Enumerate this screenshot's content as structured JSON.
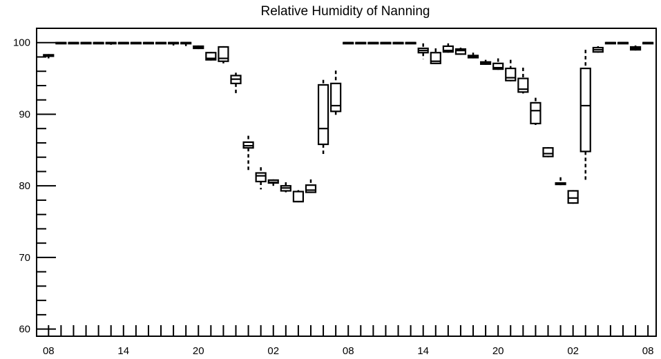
{
  "chart_data": {
    "type": "box",
    "title": "Relative Humidity of Nanning",
    "xlabel": "",
    "ylabel": "",
    "ylim": [
      59,
      102
    ],
    "y_ticks": [
      60,
      70,
      80,
      90,
      100
    ],
    "x_ticks": [
      "08",
      "14",
      "20",
      "02",
      "08",
      "14",
      "20",
      "02",
      "08"
    ],
    "x_tick_index": [
      0,
      6,
      12,
      18,
      24,
      30,
      36,
      42,
      48
    ],
    "n_slots": 49,
    "grid": false,
    "boxes": [
      {
        "i": 0,
        "min": 97.8,
        "q1": 98.1,
        "med": 98.2,
        "q3": 98.3,
        "max": 98.4
      },
      {
        "i": 1,
        "min": 100,
        "q1": 100,
        "med": 100,
        "q3": 100,
        "max": 100
      },
      {
        "i": 2,
        "min": 100,
        "q1": 100,
        "med": 100,
        "q3": 100,
        "max": 100
      },
      {
        "i": 3,
        "min": 100,
        "q1": 100,
        "med": 100,
        "q3": 100,
        "max": 100
      },
      {
        "i": 4,
        "min": 100,
        "q1": 100,
        "med": 100,
        "q3": 100,
        "max": 100
      },
      {
        "i": 5,
        "min": 99.7,
        "q1": 100,
        "med": 100,
        "q3": 100,
        "max": 100
      },
      {
        "i": 6,
        "min": 100,
        "q1": 100,
        "med": 100,
        "q3": 100,
        "max": 100
      },
      {
        "i": 7,
        "min": 100,
        "q1": 100,
        "med": 100,
        "q3": 100,
        "max": 100
      },
      {
        "i": 8,
        "min": 100,
        "q1": 100,
        "med": 100,
        "q3": 100,
        "max": 100
      },
      {
        "i": 9,
        "min": 100,
        "q1": 100,
        "med": 100,
        "q3": 100,
        "max": 100
      },
      {
        "i": 10,
        "min": 99.6,
        "q1": 100,
        "med": 100,
        "q3": 100,
        "max": 100
      },
      {
        "i": 11,
        "min": 99.4,
        "q1": 100,
        "med": 100,
        "q3": 100,
        "max": 100
      },
      {
        "i": 12,
        "min": 99.1,
        "q1": 99.2,
        "med": 99.3,
        "q3": 99.5,
        "max": 99.6
      },
      {
        "i": 13,
        "min": 97.5,
        "q1": 97.6,
        "med": 97.8,
        "q3": 98.6,
        "max": 98.7
      },
      {
        "i": 14,
        "min": 97.1,
        "q1": 97.4,
        "med": 97.8,
        "q3": 99.4,
        "max": 99.5
      },
      {
        "i": 15,
        "min": 92.6,
        "q1": 94.3,
        "med": 94.9,
        "q3": 95.4,
        "max": 95.8
      },
      {
        "i": 16,
        "min": 82.0,
        "q1": 85.3,
        "med": 85.6,
        "q3": 86.1,
        "max": 87.0
      },
      {
        "i": 17,
        "min": 79.5,
        "q1": 80.6,
        "med": 81.4,
        "q3": 81.8,
        "max": 82.6
      },
      {
        "i": 18,
        "min": 80.0,
        "q1": 80.4,
        "med": 80.5,
        "q3": 80.8,
        "max": 80.9
      },
      {
        "i": 19,
        "min": 79.1,
        "q1": 79.3,
        "med": 79.7,
        "q3": 80.0,
        "max": 80.5
      },
      {
        "i": 20,
        "min": 77.7,
        "q1": 77.8,
        "med": 77.8,
        "q3": 79.2,
        "max": 79.4
      },
      {
        "i": 21,
        "min": 79.0,
        "q1": 79.1,
        "med": 79.4,
        "q3": 80.1,
        "max": 80.9
      },
      {
        "i": 22,
        "min": 84.1,
        "q1": 85.8,
        "med": 88.0,
        "q3": 94.1,
        "max": 94.8
      },
      {
        "i": 23,
        "min": 89.9,
        "q1": 90.4,
        "med": 91.2,
        "q3": 94.3,
        "max": 96.1
      },
      {
        "i": 24,
        "min": 99.8,
        "q1": 99.9,
        "med": 100,
        "q3": 100,
        "max": 100
      },
      {
        "i": 25,
        "min": 100,
        "q1": 100,
        "med": 100,
        "q3": 100,
        "max": 100
      },
      {
        "i": 26,
        "min": 100,
        "q1": 100,
        "med": 100,
        "q3": 100,
        "max": 100
      },
      {
        "i": 27,
        "min": 100,
        "q1": 100,
        "med": 100,
        "q3": 100,
        "max": 100
      },
      {
        "i": 28,
        "min": 100,
        "q1": 100,
        "med": 100,
        "q3": 100,
        "max": 100
      },
      {
        "i": 29,
        "min": 100,
        "q1": 100,
        "med": 100,
        "q3": 100,
        "max": 100
      },
      {
        "i": 30,
        "min": 97.7,
        "q1": 98.6,
        "med": 98.9,
        "q3": 99.2,
        "max": 99.9
      },
      {
        "i": 31,
        "min": 97.0,
        "q1": 97.1,
        "med": 97.4,
        "q3": 98.6,
        "max": 99.2
      },
      {
        "i": 32,
        "min": 98.6,
        "q1": 98.7,
        "med": 98.9,
        "q3": 99.5,
        "max": 99.9
      },
      {
        "i": 33,
        "min": 98.3,
        "q1": 98.4,
        "med": 98.9,
        "q3": 99.1,
        "max": 99.3
      },
      {
        "i": 34,
        "min": 97.8,
        "q1": 97.9,
        "med": 98.1,
        "q3": 98.2,
        "max": 98.6
      },
      {
        "i": 35,
        "min": 96.9,
        "q1": 97.0,
        "med": 97.2,
        "q3": 97.3,
        "max": 97.6
      },
      {
        "i": 36,
        "min": 96.2,
        "q1": 96.3,
        "med": 96.5,
        "q3": 97.1,
        "max": 97.8
      },
      {
        "i": 37,
        "min": 94.6,
        "q1": 94.7,
        "med": 95.1,
        "q3": 96.4,
        "max": 97.6
      },
      {
        "i": 38,
        "min": 92.9,
        "q1": 93.1,
        "med": 93.5,
        "q3": 95.0,
        "max": 96.5
      },
      {
        "i": 39,
        "min": 88.5,
        "q1": 88.7,
        "med": 90.5,
        "q3": 91.6,
        "max": 92.3
      },
      {
        "i": 40,
        "min": 84.0,
        "q1": 84.1,
        "med": 84.5,
        "q3": 85.3,
        "max": 85.4
      },
      {
        "i": 41,
        "min": 80.1,
        "q1": 80.2,
        "med": 80.3,
        "q3": 80.4,
        "max": 81.2
      },
      {
        "i": 42,
        "min": 77.5,
        "q1": 77.6,
        "med": 78.3,
        "q3": 79.3,
        "max": 79.4
      },
      {
        "i": 43,
        "min": 80.6,
        "q1": 84.8,
        "med": 91.2,
        "q3": 96.4,
        "max": 99.0
      },
      {
        "i": 44,
        "min": 98.6,
        "q1": 98.7,
        "med": 99.0,
        "q3": 99.3,
        "max": 99.5
      },
      {
        "i": 45,
        "min": 100,
        "q1": 100,
        "med": 100,
        "q3": 100,
        "max": 100
      },
      {
        "i": 46,
        "min": 100,
        "q1": 100,
        "med": 100,
        "q3": 100,
        "max": 100
      },
      {
        "i": 47,
        "min": 98.9,
        "q1": 99.0,
        "med": 99.2,
        "q3": 99.4,
        "max": 99.6
      },
      {
        "i": 48,
        "min": 99.8,
        "q1": 99.9,
        "med": 100,
        "q3": 100,
        "max": 100
      }
    ]
  }
}
